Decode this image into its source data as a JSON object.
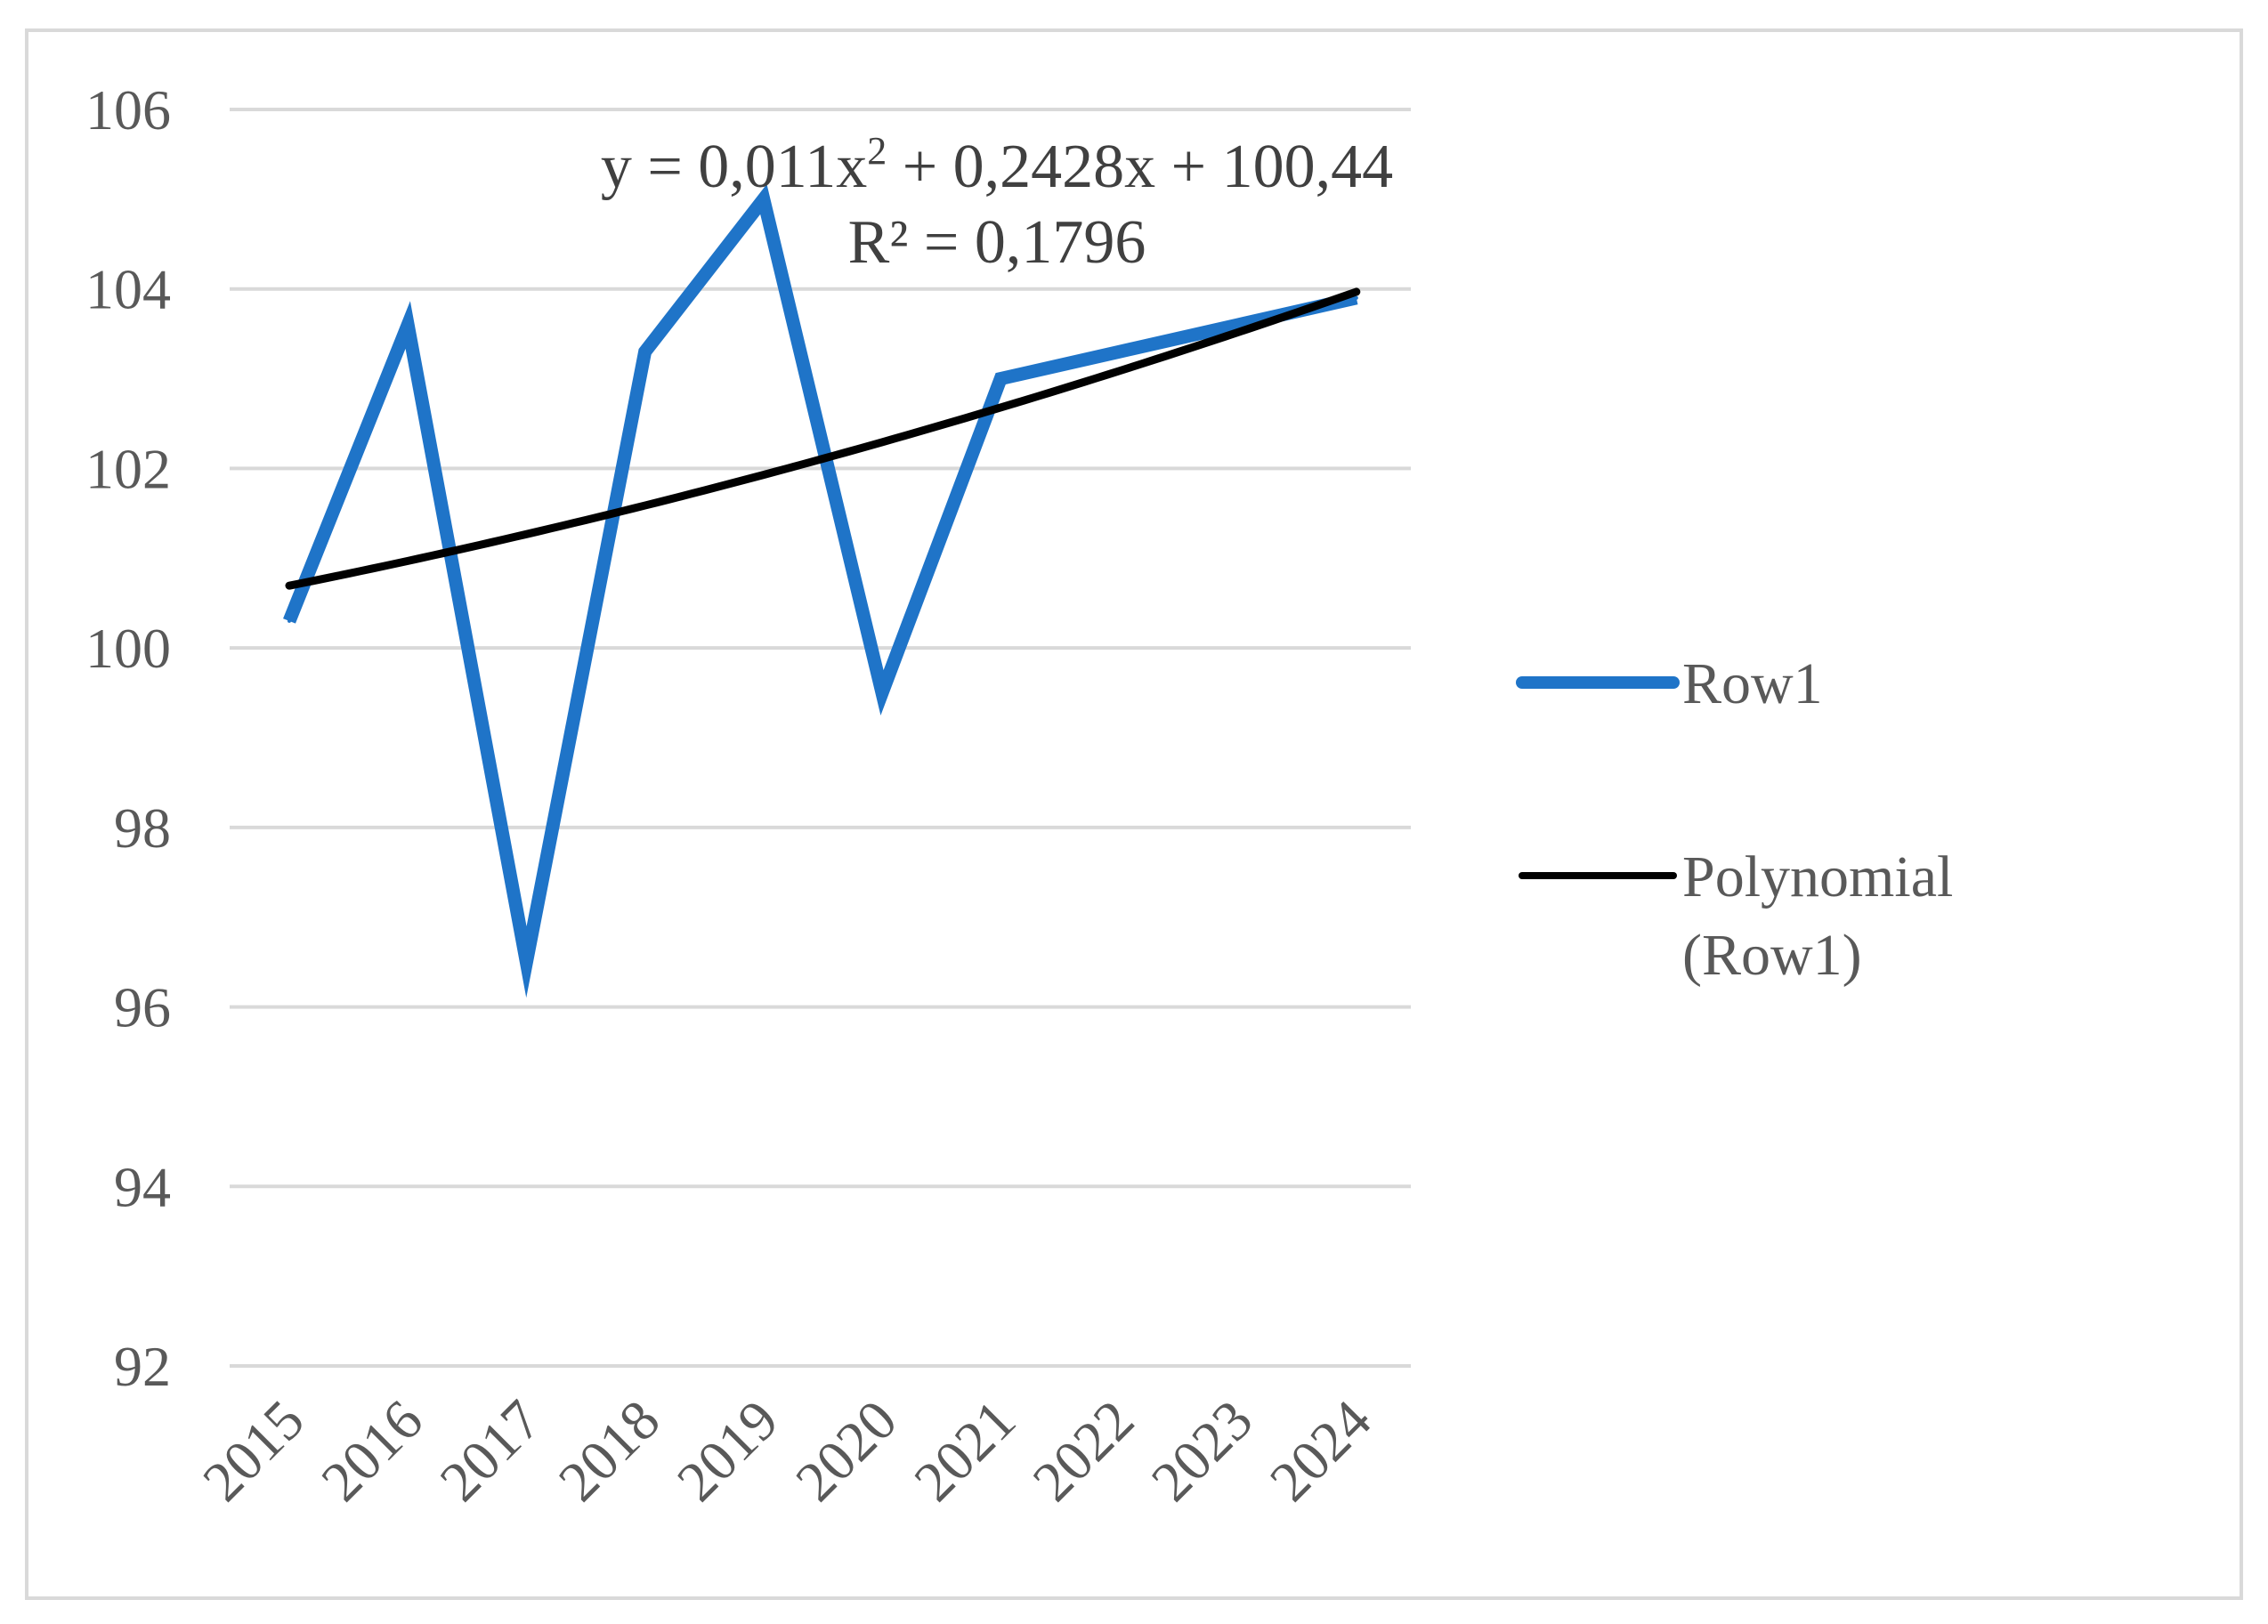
{
  "chart_data": {
    "type": "line",
    "categories": [
      "2015",
      "2016",
      "2017",
      "2018",
      "2019",
      "2020",
      "2021",
      "2022",
      "2023",
      "2024"
    ],
    "series": [
      {
        "name": "Row1",
        "values": [
          100.3,
          103.6,
          96.5,
          103.3,
          105.0,
          99.5,
          103.0,
          103.3,
          103.6,
          103.9
        ],
        "color": "#1f74c8"
      }
    ],
    "trendline": {
      "name": "Polynomial (Row1)",
      "name_line1": "Polynomial",
      "name_line2": "(Row1)",
      "type": "polynomial",
      "order": 2,
      "coefficients": {
        "a": 0.011,
        "b": 0.2428,
        "c": 100.44
      },
      "equation_prefix": "y = 0,011x",
      "equation_sup": "2",
      "equation_suffix": " + 0,2428x + 100,44",
      "r_squared_label": "R² = 0,1796",
      "color": "#000000"
    },
    "ylim": [
      92,
      106
    ],
    "yticks": [
      "92",
      "94",
      "96",
      "98",
      "100",
      "102",
      "104",
      "106"
    ],
    "grid": true,
    "gridline_color": "#d9d9d9",
    "legend_position": "right",
    "title": "",
    "xlabel": "",
    "ylabel": ""
  }
}
